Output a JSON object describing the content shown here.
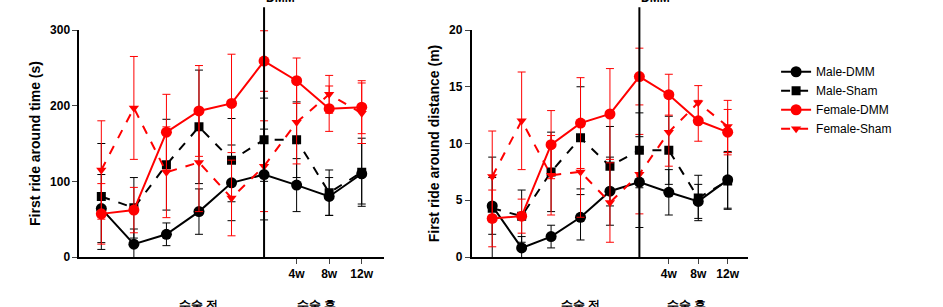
{
  "chart_data": [
    {
      "type": "line",
      "y_label": "First ride around time (s)",
      "categories": [
        null,
        null,
        null,
        null,
        null,
        null,
        "4w",
        "8w",
        "12w"
      ],
      "ylim": [
        0,
        300
      ],
      "yticks": [
        0,
        100,
        200,
        300
      ],
      "grid": false,
      "legend": "right",
      "annotations": [
        {
          "text": "DMM",
          "x": 5,
          "kind": "vline"
        },
        {
          "text": "수술 전",
          "x": 3,
          "kind": "below"
        },
        {
          "text": "수술 후",
          "x": 6.6,
          "kind": "below"
        }
      ],
      "series": [
        {
          "name": "Male-DMM",
          "color": "#000000",
          "marker": "circle",
          "line_style": "solid",
          "values": [
            64,
            17,
            30,
            60,
            98,
            109,
            95,
            80,
            110
          ],
          "error": [
            45,
            20,
            15,
            30,
            50,
            60,
            35,
            25,
            40
          ]
        },
        {
          "name": "Male-Sham",
          "color": "#000000",
          "marker": "square",
          "line_style": "dash",
          "values": [
            80,
            65,
            122,
            172,
            128,
            155,
            155,
            85,
            112
          ],
          "error": [
            70,
            40,
            60,
            75,
            55,
            55,
            50,
            30,
            45
          ]
        },
        {
          "name": "Female-DMM",
          "color": "#ff0000",
          "marker": "circle",
          "line_style": "solid",
          "values": [
            57,
            62,
            165,
            193,
            203,
            259,
            233,
            196,
            198
          ],
          "error": [
            40,
            30,
            50,
            60,
            65,
            40,
            30,
            30,
            35
          ]
        },
        {
          "name": "Female-Sham",
          "color": "#ff0000",
          "marker": "triangle-down",
          "line_style": "dash",
          "values": [
            115,
            197,
            112,
            125,
            78,
            120,
            178,
            215,
            190
          ],
          "error": [
            65,
            68,
            60,
            65,
            50,
            60,
            55,
            25,
            40
          ]
        }
      ]
    },
    {
      "type": "line",
      "y_label": "First ride around distance (m)",
      "categories": [
        null,
        null,
        null,
        null,
        null,
        null,
        "4w",
        "8w",
        "12w"
      ],
      "ylim": [
        0,
        20
      ],
      "yticks": [
        0,
        5,
        10,
        15,
        20
      ],
      "grid": false,
      "annotations": [
        {
          "text": "DMM",
          "x": 5,
          "kind": "vline"
        },
        {
          "text": "수술 전",
          "x": 3,
          "kind": "below"
        },
        {
          "text": "수술 후",
          "x": 6.6,
          "kind": "below"
        }
      ],
      "series": [
        {
          "name": "Male-DMM",
          "color": "#000000",
          "marker": "circle",
          "line_style": "solid",
          "values": [
            4.5,
            0.8,
            1.8,
            3.5,
            5.8,
            6.6,
            5.7,
            4.9,
            6.8
          ],
          "error": [
            2.5,
            1.0,
            1.0,
            2.0,
            3.0,
            4.0,
            2.0,
            1.5,
            2.5
          ]
        },
        {
          "name": "Male-Sham",
          "color": "#000000",
          "marker": "square",
          "line_style": "dash",
          "values": [
            4.3,
            3.6,
            7.5,
            10.5,
            8.0,
            9.4,
            9.4,
            5.2,
            6.7
          ],
          "error": [
            4.5,
            2.3,
            3.5,
            4.5,
            3.5,
            3.3,
            3.0,
            2.0,
            2.5
          ]
        },
        {
          "name": "Female-DMM",
          "color": "#ff0000",
          "marker": "circle",
          "line_style": "solid",
          "values": [
            3.4,
            3.6,
            9.9,
            11.8,
            12.6,
            15.9,
            14.3,
            12.0,
            11.0
          ],
          "error": [
            2.5,
            1.5,
            3.0,
            4.0,
            4.0,
            2.5,
            1.8,
            1.8,
            2.0
          ]
        },
        {
          "name": "Female-Sham",
          "color": "#ff0000",
          "marker": "triangle-down",
          "line_style": "dash",
          "values": [
            7.1,
            12.0,
            7.2,
            7.5,
            4.8,
            7.3,
            11.0,
            13.6,
            11.5
          ],
          "error": [
            4.0,
            4.3,
            3.5,
            4.0,
            3.5,
            3.5,
            3.0,
            1.5,
            2.3
          ]
        }
      ]
    }
  ]
}
